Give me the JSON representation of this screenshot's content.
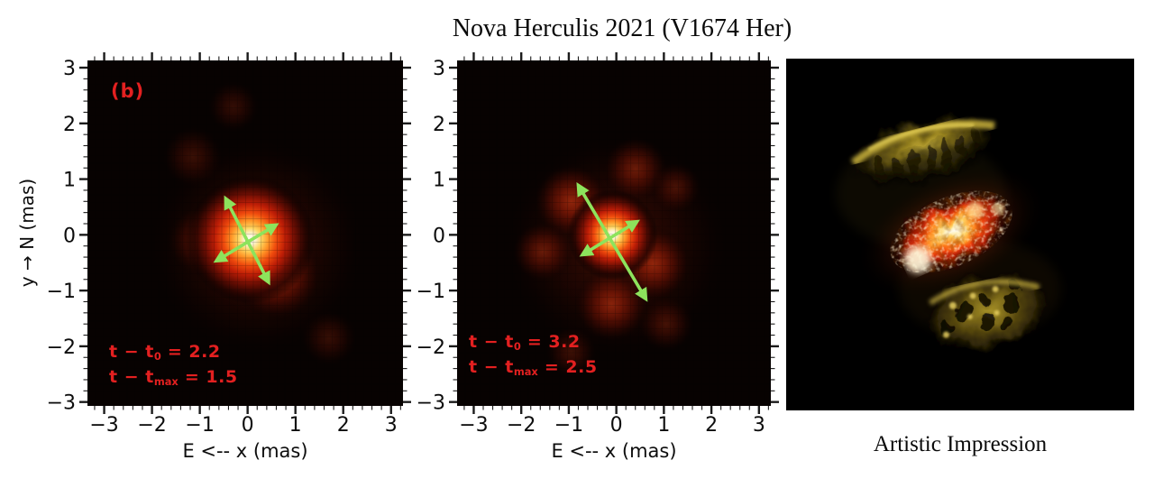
{
  "title": "Nova Herculis 2021 (V1674 Her)",
  "right_panel": {
    "caption": "Artistic Impression"
  },
  "colors": {
    "annotation_red": "#e32020",
    "panel_label_red": "#e32020",
    "arrow_green": "#8de35c",
    "plot_background": "#070201",
    "page_background": "#ffffff",
    "tick_color": "#1b1b1b",
    "art_core_orange": "#ff8e24",
    "art_lobe_olive": "#a58f26"
  },
  "chart_data": [
    {
      "type": "heatmap",
      "panel": "left-epoch",
      "panel_label": "(b)",
      "xlabel": "E <-- x (mas)",
      "ylabel": "y → N (mas)",
      "xlim": [
        -3.35,
        3.25
      ],
      "ylim": [
        -3.07,
        3.13
      ],
      "xticks": [
        -3,
        -2,
        -1,
        0,
        1,
        2,
        3
      ],
      "yticks": [
        3,
        2,
        1,
        0,
        -1,
        -2,
        -3
      ],
      "xtick_labels": [
        "−3",
        "−2",
        "−1",
        "0",
        "1",
        "2",
        "3"
      ],
      "ytick_labels": [
        "3",
        "2",
        "1",
        "0",
        "−1",
        "−2",
        "−3"
      ],
      "minor_tick_step": 0.2,
      "annotation_lines": [
        {
          "pre": "t − t",
          "sub": "0",
          "post": " = 2.2"
        },
        {
          "pre": "t − t",
          "sub": "max",
          "post": " = 1.5"
        }
      ],
      "blobs": [
        {
          "x": 0.2,
          "y": -0.2,
          "r": 2.3,
          "peak": 0.1
        },
        {
          "x": -0.95,
          "y": -0.1,
          "r": 0.75,
          "peak": 0.22
        },
        {
          "x": 0.62,
          "y": -0.72,
          "r": 0.95,
          "peak": 0.5
        },
        {
          "x": 0.05,
          "y": -0.08,
          "r": 1.35,
          "peak": 1.0
        },
        {
          "x": -1.15,
          "y": 1.4,
          "r": 0.65,
          "peak": 0.1
        },
        {
          "x": 1.7,
          "y": -1.85,
          "r": 0.6,
          "peak": 0.08
        },
        {
          "x": -0.3,
          "y": 2.3,
          "r": 0.55,
          "peak": 0.07
        }
      ],
      "arrows": [
        {
          "x1": -0.62,
          "y1": -0.45,
          "x2": 0.56,
          "y2": 0.16
        },
        {
          "x1": -0.44,
          "y1": 0.62,
          "x2": 0.42,
          "y2": -0.82
        }
      ]
    },
    {
      "type": "heatmap",
      "panel": "middle-epoch",
      "panel_label": "",
      "xlabel": "E <-- x (mas)",
      "ylabel": "",
      "xlim": [
        -3.35,
        3.25
      ],
      "ylim": [
        -3.07,
        3.13
      ],
      "xticks": [
        -3,
        -2,
        -1,
        0,
        1,
        2,
        3
      ],
      "yticks": [
        3,
        2,
        1,
        0,
        -1,
        -2,
        -3
      ],
      "xtick_labels": [
        "−3",
        "−2",
        "−1",
        "0",
        "1",
        "2",
        "3"
      ],
      "ytick_labels": [
        "3",
        "2",
        "1",
        "0",
        "−1",
        "−2",
        "−3"
      ],
      "minor_tick_step": 0.2,
      "annotation_lines": [
        {
          "pre": "t − t",
          "sub": "0",
          "post": " = 3.2"
        },
        {
          "pre": "t − t",
          "sub": "max",
          "post": " = 2.5"
        }
      ],
      "blobs": [
        {
          "x": 0.0,
          "y": -0.2,
          "r": 2.4,
          "peak": 0.1
        },
        {
          "x": -0.95,
          "y": 0.6,
          "r": 0.8,
          "peak": 0.5
        },
        {
          "x": 0.78,
          "y": -0.52,
          "r": 0.8,
          "peak": 0.48
        },
        {
          "x": -0.1,
          "y": -1.25,
          "r": 0.8,
          "peak": 0.45
        },
        {
          "x": -1.55,
          "y": -0.3,
          "r": 0.65,
          "peak": 0.3
        },
        {
          "x": 0.4,
          "y": 1.18,
          "r": 0.7,
          "peak": 0.32
        },
        {
          "x": 1.25,
          "y": 0.85,
          "r": 0.55,
          "peak": 0.15
        },
        {
          "x": -0.95,
          "y": -2.1,
          "r": 0.55,
          "peak": 0.12
        },
        {
          "x": 1.05,
          "y": -1.6,
          "r": 0.6,
          "peak": 0.14
        },
        {
          "x": -0.08,
          "y": 0.0,
          "r": 0.95,
          "peak": 1.0
        }
      ],
      "arrows": [
        {
          "x1": -0.78,
          "y1": 0.86,
          "x2": 0.6,
          "y2": -1.12
        },
        {
          "x1": -0.68,
          "y1": -0.34,
          "x2": 0.4,
          "y2": 0.22
        }
      ]
    }
  ]
}
